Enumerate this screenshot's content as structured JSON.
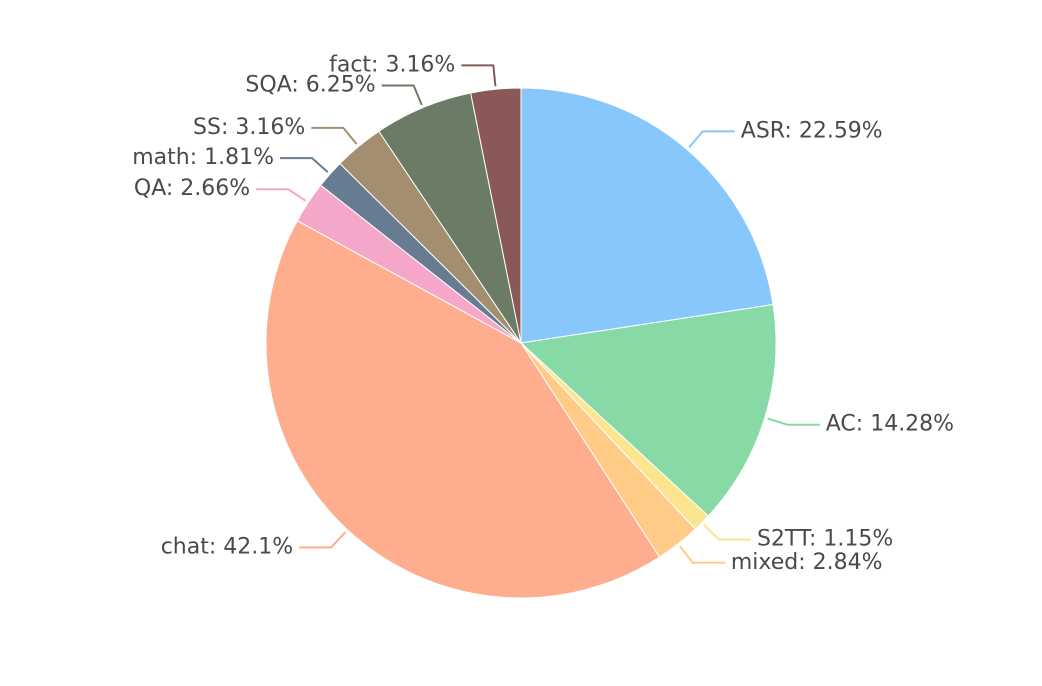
{
  "chart_data": {
    "type": "pie",
    "slices": [
      {
        "category": "ASR",
        "value": 22.59,
        "label": "ASR: 22.59%",
        "color": "#87c7fb"
      },
      {
        "category": "AC",
        "value": 14.28,
        "label": "AC: 14.28%",
        "color": "#87daa6"
      },
      {
        "category": "S2TT",
        "value": 1.15,
        "label": "S2TT: 1.15%",
        "color": "#fbe58f"
      },
      {
        "category": "mixed",
        "value": 2.84,
        "label": "mixed: 2.84%",
        "color": "#ffcb87"
      },
      {
        "category": "chat",
        "value": 42.1,
        "label": "chat: 42.1%",
        "color": "#ffad8f"
      },
      {
        "category": "QA",
        "value": 2.66,
        "label": "QA: 2.66%",
        "color": "#f4a7c8"
      },
      {
        "category": "math",
        "value": 1.81,
        "label": "math: 1.81%",
        "color": "#677c91"
      },
      {
        "category": "SS",
        "value": 3.16,
        "label": "SS: 3.16%",
        "color": "#a38f70"
      },
      {
        "category": "SQA",
        "value": 6.25,
        "label": "SQA: 6.25%",
        "color": "#6b7b66"
      },
      {
        "category": "fact",
        "value": 3.16,
        "label": "fact: 3.16%",
        "color": "#8b5858"
      }
    ]
  }
}
